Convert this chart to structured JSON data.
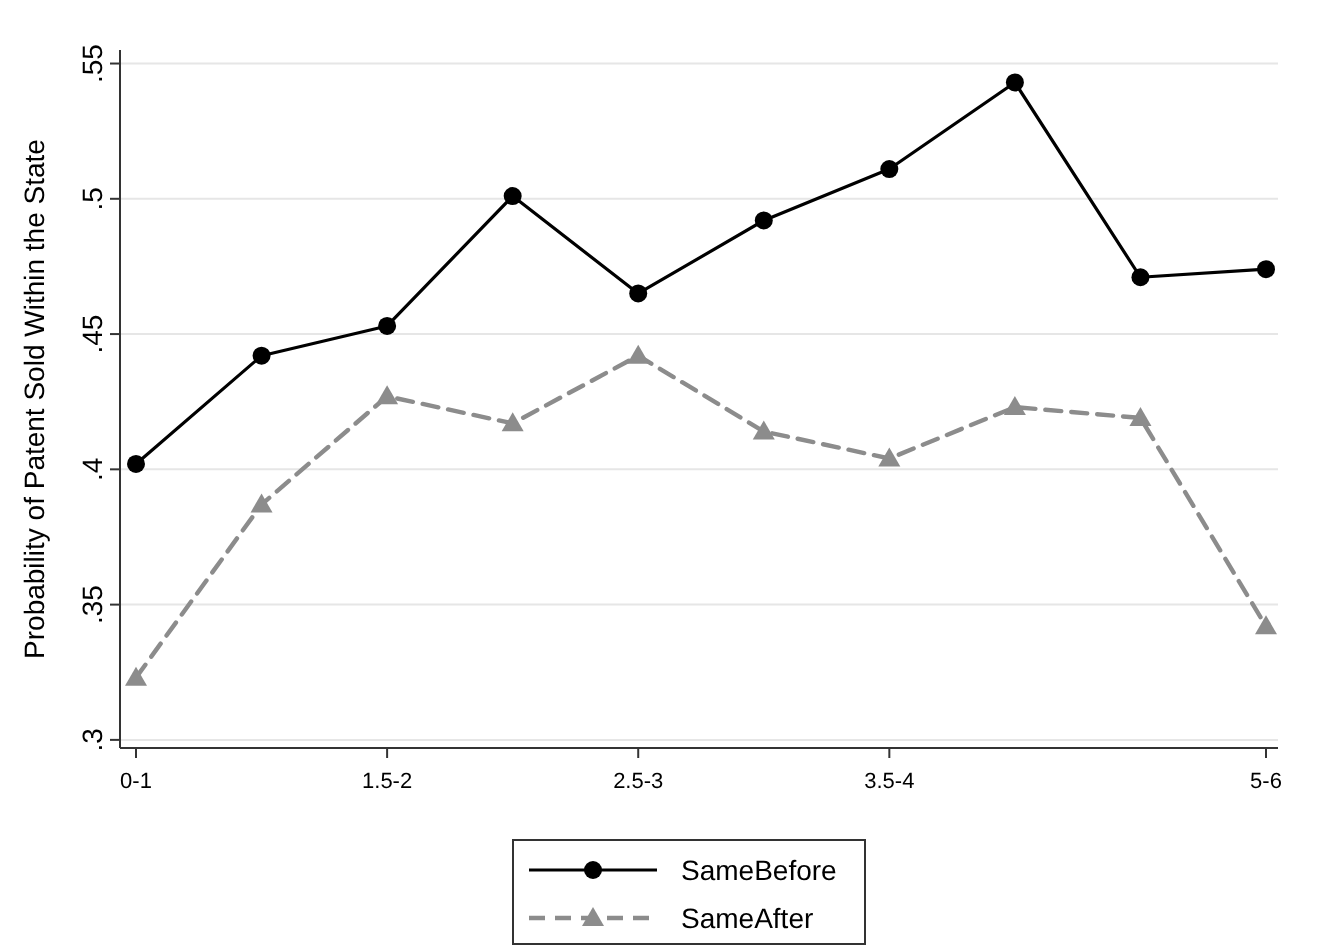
{
  "chart_data": {
    "type": "line",
    "ylabel": "Probability of Patent Sold Within the State",
    "categories": [
      "0-1",
      null,
      "1.5-2",
      null,
      "2.5-3",
      null,
      "3.5-4",
      null,
      null,
      "5-6"
    ],
    "series": [
      {
        "name": "SameBefore",
        "color": "#000000",
        "marker": "circle",
        "line_style": "solid",
        "values": [
          0.402,
          0.442,
          0.453,
          0.501,
          0.465,
          0.492,
          0.511,
          0.543,
          0.471,
          0.474
        ]
      },
      {
        "name": "SameAfter",
        "color": "#8c8c8c",
        "marker": "triangle",
        "line_style": "dashed",
        "values": [
          0.323,
          0.387,
          0.427,
          0.417,
          0.442,
          0.414,
          0.404,
          0.423,
          0.419,
          0.342
        ]
      }
    ],
    "ylim": [
      0.297,
      0.555
    ],
    "yticks": [
      {
        "value": 0.3,
        "label": ".3"
      },
      {
        "value": 0.35,
        "label": ".35"
      },
      {
        "value": 0.4,
        "label": ".4"
      },
      {
        "value": 0.45,
        "label": ".45"
      },
      {
        "value": 0.5,
        "label": ".5"
      },
      {
        "value": 0.55,
        "label": ".55"
      }
    ],
    "grid": "y",
    "legend": "bottom"
  }
}
